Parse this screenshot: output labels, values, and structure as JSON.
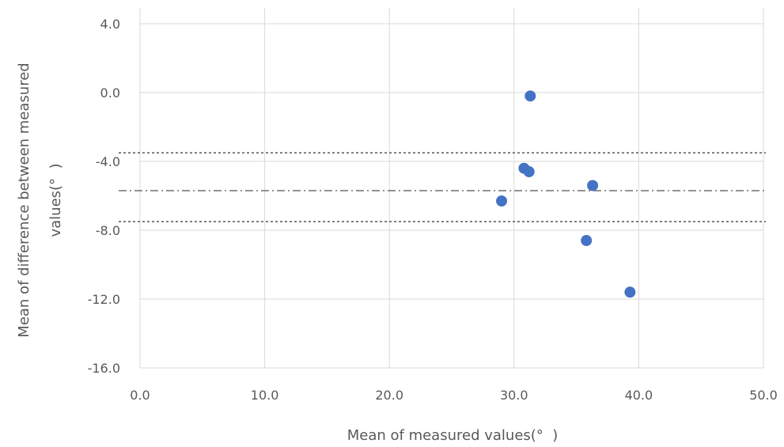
{
  "chart_data": {
    "type": "scatter",
    "xlabel": "Mean of measured values(°  )",
    "ylabel_lines": [
      "Mean of difference between  measured",
      "values(°  )"
    ],
    "xlim": [
      0,
      50
    ],
    "ylim": [
      -16,
      4
    ],
    "x_ticks": [
      0,
      10,
      20,
      30,
      40,
      50
    ],
    "y_ticks": [
      -16,
      -12,
      -8,
      -4,
      0,
      4
    ],
    "x_tick_labels": [
      "0.0",
      "10.0",
      "20.0",
      "30.0",
      "40.0",
      "50.0"
    ],
    "y_tick_labels": [
      "-16.0",
      "-12.0",
      "-8.0",
      "-4.0",
      "0.0",
      "4.0"
    ],
    "grid": true,
    "series": [
      {
        "marker_color": "#4472c4",
        "points": [
          {
            "x": 31.3,
            "y": -0.2
          },
          {
            "x": 30.8,
            "y": -4.4
          },
          {
            "x": 31.2,
            "y": -4.6
          },
          {
            "x": 36.3,
            "y": -5.4
          },
          {
            "x": 29.0,
            "y": -6.3
          },
          {
            "x": 35.8,
            "y": -8.6
          },
          {
            "x": 39.3,
            "y": -11.6
          }
        ]
      }
    ],
    "reference_lines": [
      {
        "y": -3.5,
        "style": "dotted",
        "color": "#333333"
      },
      {
        "y": -5.7,
        "style": "dash-dot",
        "color": "#555555"
      },
      {
        "y": -7.5,
        "style": "dotted",
        "color": "#333333"
      }
    ]
  }
}
